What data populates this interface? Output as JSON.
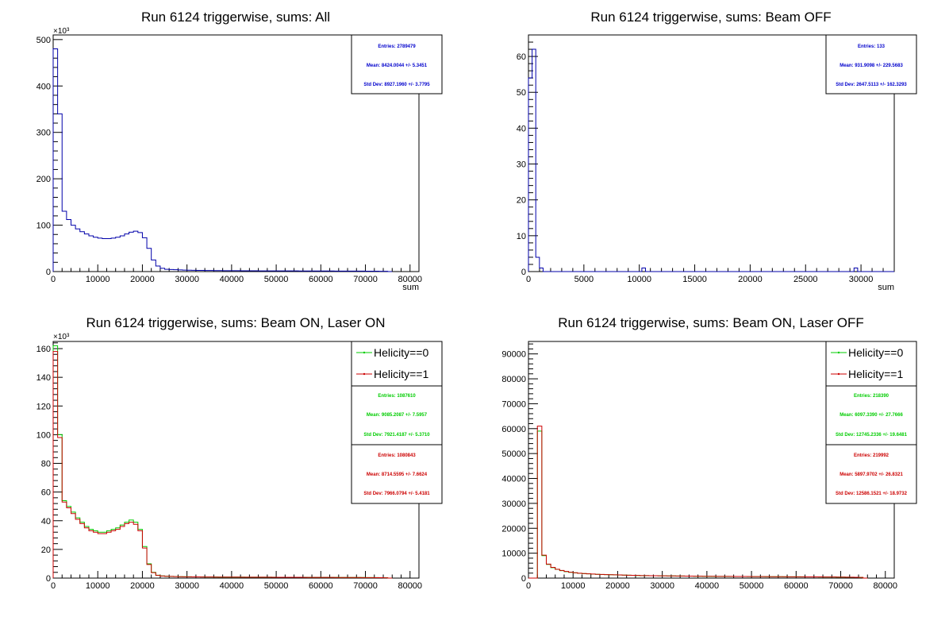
{
  "chart_data": [
    {
      "type": "line",
      "title": "Run 6124 triggerwise, sums: All",
      "xlabel": "sum",
      "ylabel": "",
      "y_multiplier_label": "×10³",
      "xlim": [
        0,
        82000
      ],
      "ylim": [
        0,
        510000
      ],
      "x_ticks": [
        0,
        10000,
        20000,
        30000,
        40000,
        50000,
        60000,
        70000,
        80000
      ],
      "y_ticks": [
        0,
        100000,
        200000,
        300000,
        400000,
        500000
      ],
      "y_tick_labels": [
        "0",
        "100",
        "200",
        "300",
        "400",
        "500"
      ],
      "bin_width": 1000,
      "series": [
        {
          "color": "#0000aa",
          "values": [
            480000,
            340000,
            130000,
            112000,
            100000,
            92000,
            86000,
            81000,
            77000,
            74000,
            72000,
            71000,
            71000,
            72000,
            74000,
            77000,
            81000,
            85000,
            87000,
            84000,
            73000,
            50000,
            25000,
            12000,
            7000,
            5000,
            4500,
            4000,
            3600,
            3200,
            3000,
            2800,
            2600,
            2500,
            2400,
            2300,
            2200,
            2100,
            2000,
            2000,
            1900,
            1900,
            1800,
            1800,
            1700,
            1700,
            1600,
            1600,
            1600,
            1500,
            1500,
            1500,
            1400,
            1400,
            1400,
            1300,
            1300,
            1300,
            1300,
            1200,
            1200,
            1200,
            1200,
            1100,
            1100,
            1100,
            1100,
            1000,
            1000,
            1000,
            900,
            900,
            800,
            700,
            600,
            0
          ]
        }
      ],
      "stats": [
        {
          "color": "#0000cc",
          "entries": "Entries: 2789479",
          "mean": "Mean: 8424.0044 +/- 5.3451",
          "stddev": "Std Dev: 8927.1960 +/- 3.7795"
        }
      ],
      "legend": []
    },
    {
      "type": "line",
      "title": "Run 6124 triggerwise, sums: Beam OFF",
      "xlabel": "sum",
      "ylabel": "",
      "xlim": [
        0,
        33000
      ],
      "ylim": [
        0,
        66
      ],
      "x_ticks": [
        0,
        5000,
        10000,
        15000,
        20000,
        25000,
        30000
      ],
      "y_ticks": [
        0,
        10,
        20,
        30,
        40,
        50,
        60
      ],
      "y_tick_labels": [
        "0",
        "10",
        "20",
        "30",
        "40",
        "50",
        "60"
      ],
      "bin_width": 330,
      "series": [
        {
          "color": "#0000aa",
          "values": [
            54,
            62,
            4,
            1,
            0,
            0,
            0,
            0,
            0,
            0,
            0,
            0,
            0,
            0,
            0,
            0,
            0,
            0,
            0,
            0,
            0,
            0,
            0,
            0,
            0,
            0,
            0,
            0,
            0,
            0,
            0,
            1,
            0,
            0,
            0,
            0,
            0,
            0,
            0,
            0,
            0,
            0,
            0,
            0,
            0,
            0,
            0,
            0,
            0,
            0,
            0,
            0,
            0,
            0,
            0,
            0,
            0,
            0,
            0,
            0,
            0,
            0,
            0,
            0,
            0,
            0,
            0,
            0,
            0,
            0,
            0,
            0,
            0,
            0,
            0,
            0,
            0,
            0,
            0,
            0,
            0,
            0,
            0,
            0,
            0,
            0,
            0,
            0,
            0,
            1,
            0,
            0,
            0,
            0,
            0,
            0,
            0,
            0,
            0,
            0
          ]
        }
      ],
      "stats": [
        {
          "color": "#0000cc",
          "entries": "Entries: 133",
          "mean": "Mean: 931.9098 +/- 229.5683",
          "stddev": "Std Dev: 2647.5113 +/- 162.3293"
        }
      ],
      "legend": []
    },
    {
      "type": "line",
      "title": "Run 6124 triggerwise, sums: Beam ON, Laser ON",
      "xlabel": "",
      "ylabel": "",
      "y_multiplier_label": "×10³",
      "xlim": [
        0,
        82000
      ],
      "ylim": [
        0,
        165000
      ],
      "x_ticks": [
        0,
        10000,
        20000,
        30000,
        40000,
        50000,
        60000,
        70000,
        80000
      ],
      "y_ticks": [
        0,
        20000,
        40000,
        60000,
        80000,
        100000,
        120000,
        140000,
        160000
      ],
      "y_tick_labels": [
        "0",
        "20",
        "40",
        "60",
        "80",
        "100",
        "120",
        "140",
        "160"
      ],
      "bin_width": 1000,
      "series": [
        {
          "name": "Helicity==0",
          "color": "#00cc00",
          "values": [
            162000,
            100000,
            54000,
            50000,
            46000,
            42000,
            39000,
            36000,
            34000,
            33000,
            32000,
            32000,
            33000,
            34000,
            35000,
            37000,
            39000,
            40500,
            39000,
            34000,
            22000,
            10000,
            4000,
            2000,
            1500,
            1300,
            1200,
            1100,
            1000,
            950,
            900,
            850,
            820,
            800,
            780,
            760,
            740,
            720,
            700,
            690,
            680,
            670,
            660,
            650,
            640,
            630,
            620,
            610,
            600,
            590,
            580,
            570,
            560,
            550,
            540,
            530,
            520,
            510,
            500,
            490,
            480,
            470,
            460,
            450,
            440,
            430,
            420,
            410,
            400,
            390,
            370,
            350,
            320,
            290,
            250,
            0
          ]
        },
        {
          "name": "Helicity==1",
          "color": "#cc0000",
          "values": [
            158000,
            98000,
            53000,
            49000,
            45000,
            41000,
            38000,
            35000,
            33000,
            32000,
            31000,
            31000,
            32000,
            33000,
            34000,
            36000,
            38000,
            39000,
            37500,
            33000,
            21000,
            9500,
            3800,
            1900,
            1450,
            1250,
            1150,
            1050,
            980,
            930,
            880,
            830,
            800,
            780,
            760,
            740,
            720,
            700,
            690,
            680,
            670,
            660,
            650,
            640,
            630,
            620,
            610,
            600,
            590,
            580,
            570,
            560,
            550,
            540,
            530,
            520,
            510,
            500,
            490,
            480,
            470,
            460,
            450,
            440,
            430,
            420,
            410,
            400,
            390,
            380,
            360,
            340,
            310,
            280,
            240,
            0
          ]
        }
      ],
      "stats": [
        {
          "color": "#00cc00",
          "entries": "Entries: 1087610",
          "mean": "Mean: 9085.2087 +/- 7.5957",
          "stddev": "Std Dev: 7921.4187 +/- 5.3710"
        },
        {
          "color": "#cc0000",
          "entries": "Entries: 1080843",
          "mean": "Mean: 8714.5595 +/- 7.6624",
          "stddev": "Std Dev: 7966.0794 +/- 5.4181"
        }
      ],
      "legend": [
        "Helicity==0",
        "Helicity==1"
      ]
    },
    {
      "type": "line",
      "title": "Run 6124 triggerwise, sums: Beam ON, Laser OFF",
      "xlabel": "",
      "ylabel": "",
      "xlim": [
        0,
        82000
      ],
      "ylim": [
        0,
        95000
      ],
      "x_ticks": [
        0,
        10000,
        20000,
        30000,
        40000,
        50000,
        60000,
        70000,
        80000
      ],
      "y_ticks": [
        0,
        10000,
        20000,
        30000,
        40000,
        50000,
        60000,
        70000,
        80000,
        90000
      ],
      "y_tick_labels": [
        "0",
        "10000",
        "20000",
        "30000",
        "40000",
        "50000",
        "60000",
        "70000",
        "80000",
        "90000"
      ],
      "bin_width": 1000,
      "series": [
        {
          "name": "Helicity==0",
          "color": "#00cc00",
          "values": [
            0,
            0,
            59000,
            9000,
            5500,
            4200,
            3500,
            3000,
            2600,
            2300,
            2100,
            1900,
            1800,
            1700,
            1600,
            1500,
            1450,
            1400,
            1350,
            1300,
            1250,
            1200,
            1150,
            1100,
            1050,
            1000,
            980,
            960,
            940,
            920,
            900,
            880,
            860,
            840,
            820,
            800,
            780,
            760,
            740,
            720,
            700,
            690,
            680,
            670,
            660,
            650,
            640,
            630,
            620,
            610,
            600,
            590,
            580,
            570,
            560,
            550,
            540,
            530,
            520,
            510,
            500,
            490,
            480,
            470,
            460,
            450,
            440,
            430,
            420,
            400,
            380,
            360,
            330,
            300,
            250,
            0
          ]
        },
        {
          "name": "Helicity==1",
          "color": "#cc0000",
          "values": [
            0,
            0,
            61000,
            9200,
            5600,
            4300,
            3550,
            3050,
            2650,
            2350,
            2150,
            1950,
            1820,
            1720,
            1620,
            1520,
            1460,
            1410,
            1360,
            1310,
            1260,
            1210,
            1160,
            1110,
            1060,
            1010,
            990,
            970,
            950,
            930,
            910,
            890,
            870,
            850,
            830,
            810,
            790,
            770,
            750,
            730,
            710,
            700,
            690,
            680,
            670,
            660,
            650,
            640,
            630,
            620,
            610,
            600,
            590,
            580,
            570,
            560,
            550,
            540,
            530,
            520,
            510,
            500,
            490,
            480,
            470,
            460,
            450,
            440,
            430,
            410,
            390,
            370,
            340,
            310,
            260,
            0
          ]
        }
      ],
      "stats": [
        {
          "color": "#00cc00",
          "entries": "Entries: 218390",
          "mean": "Mean: 6097.3390 +/- 27.7666",
          "stddev": "Std Dev: 12745.2336 +/- 19.6481"
        },
        {
          "color": "#cc0000",
          "entries": "Entries: 219992",
          "mean": "Mean: 5897.9702 +/- 26.8321",
          "stddev": "Std Dev: 12586.1521 +/- 18.9732"
        }
      ],
      "legend": [
        "Helicity==0",
        "Helicity==1"
      ]
    }
  ]
}
